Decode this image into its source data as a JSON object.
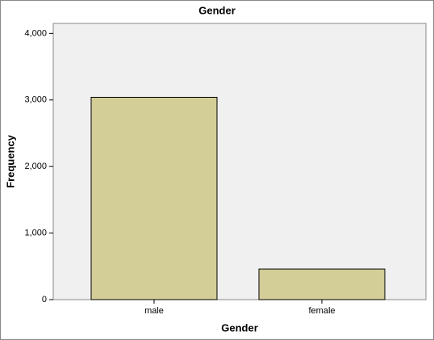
{
  "chart_data": {
    "type": "bar",
    "title": "Gender",
    "x_label": "Gender",
    "y_label": "Frequency",
    "categories": [
      "male",
      "female"
    ],
    "values": [
      3040,
      460
    ],
    "color": "#d3ce97",
    "ylim": [
      0,
      4150
    ],
    "yticks": [
      0,
      {
        "value": 1000,
        "label": "1,000"
      },
      {
        "value": 2000,
        "label": "2,000"
      },
      {
        "value": 3000,
        "label": "3,000"
      },
      {
        "value": 4000,
        "label": "4,000"
      }
    ],
    "grid": false
  }
}
